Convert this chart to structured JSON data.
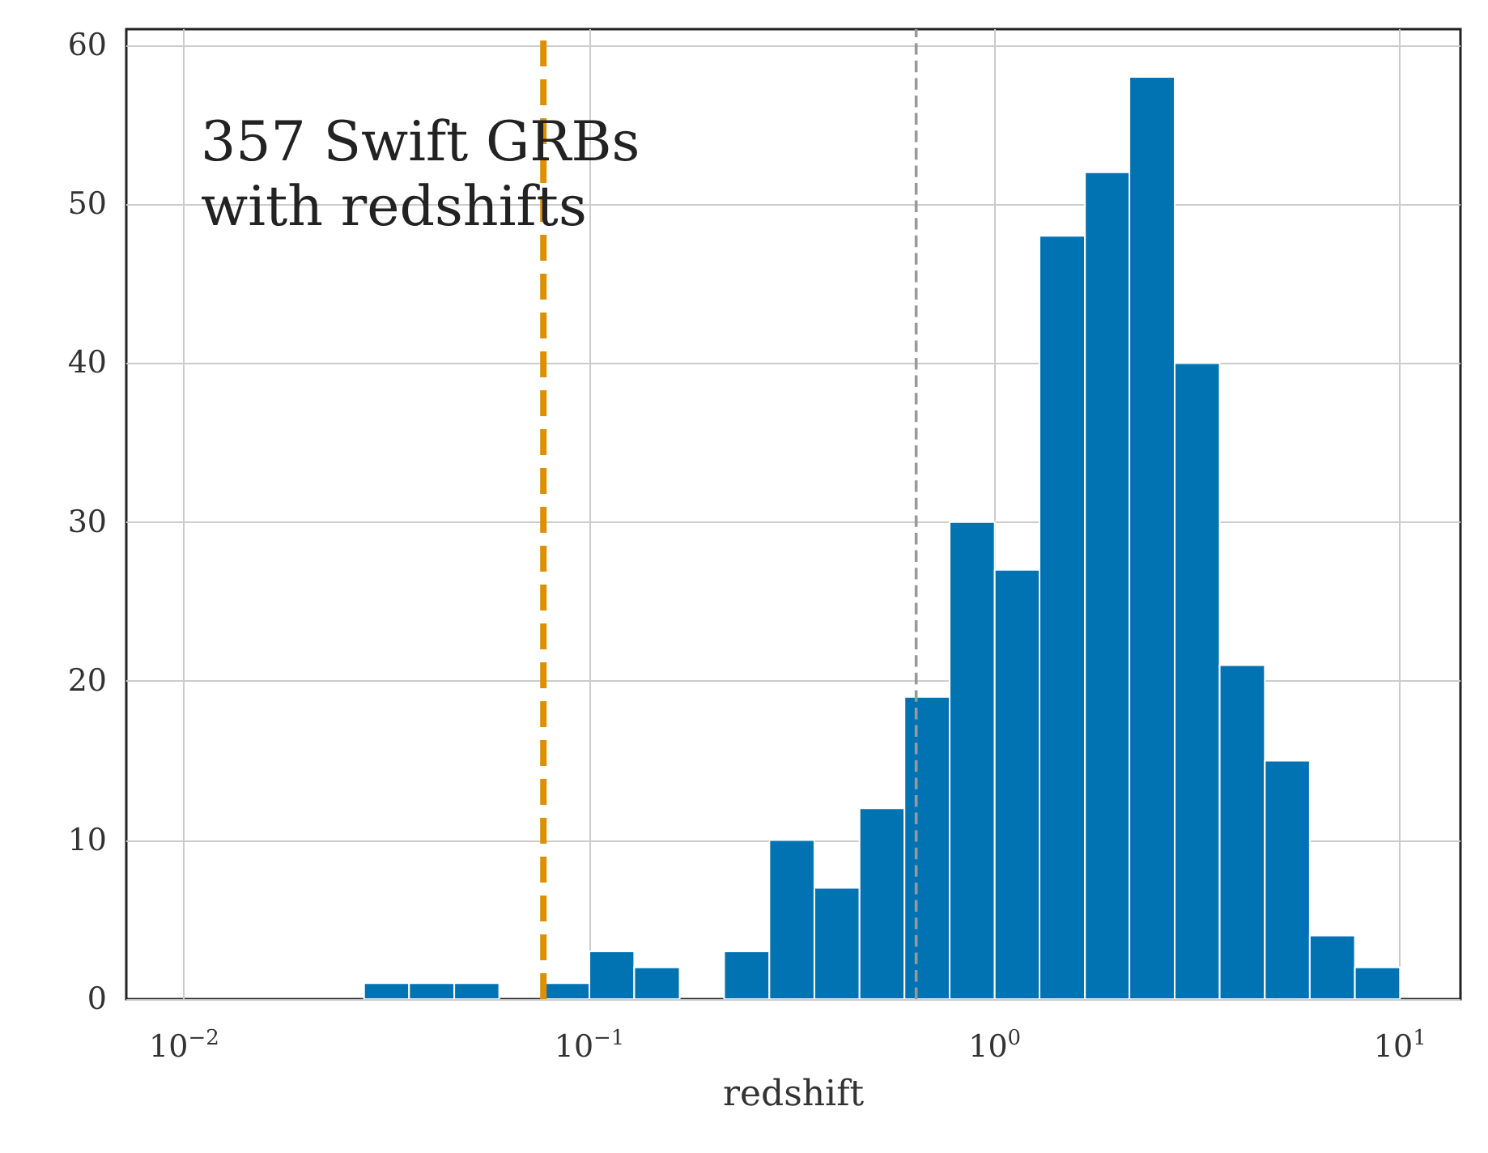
{
  "chart_data": {
    "type": "histogram",
    "xlabel": "redshift",
    "bins": [
      0.0278,
      0.0359,
      0.0464,
      0.0599,
      0.0774,
      0.1,
      0.129,
      0.167,
      0.215,
      0.278,
      0.359,
      0.464,
      0.599,
      0.774,
      1,
      1.29,
      1.67,
      2.15,
      2.78,
      3.59,
      4.64,
      5.99,
      7.74,
      10
    ],
    "values": [
      1,
      1,
      1,
      0,
      1,
      3,
      2,
      0,
      3,
      10,
      7,
      12,
      19,
      30,
      27,
      48,
      52,
      58,
      40,
      21,
      15,
      4,
      2
    ],
    "color": "#0173b2",
    "log": "x",
    "xlim": [
      0.0072,
      14.1
    ],
    "xticks": [
      {
        "value": 0.01,
        "label": "10$^{−2}$"
      },
      {
        "value": 0.1,
        "label": "10$^{−1}$"
      },
      {
        "value": 1,
        "label": "10$^{0}$"
      },
      {
        "value": 10,
        "label": "10$^{1}$"
      }
    ],
    "ylim": [
      0,
      61
    ],
    "yticks": [
      0,
      10,
      20,
      30,
      40,
      50,
      60
    ],
    "grid": true,
    "ref_lines": [
      {
        "axis": "x",
        "value": 0.077,
        "color": "#de8f05",
        "line_style": "dashed",
        "label": null
      },
      {
        "axis": "x",
        "value": 0.64,
        "color": "#999999",
        "line_style": "dashed",
        "label": null
      }
    ],
    "annotations": [
      "357 Swift GRBs\nwith redshifts"
    ]
  }
}
